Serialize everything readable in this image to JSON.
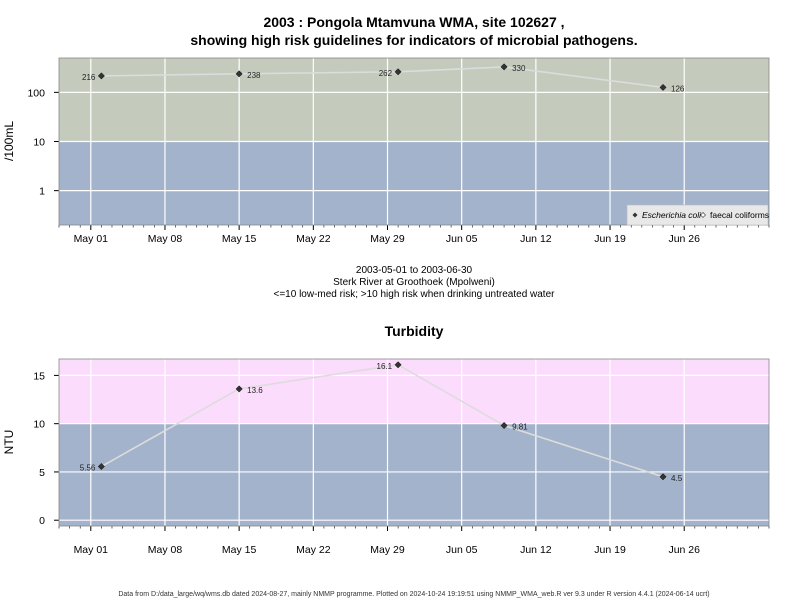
{
  "header": {
    "title_line1": "2003 : Pongola Mtamvuna WMA, site 102627 ,",
    "title_line2": "showing high risk guidelines for indicators of microbial pathogens."
  },
  "subtitles": [
    "2003-05-01 to 2003-06-30",
    "Sterk River at Groothoek (Mpolweni)",
    "<=10 low-med risk; >10 high risk when drinking untreated water"
  ],
  "footer": "Data from D:/data_large/wq/wms.db dated 2024-08-27, mainly NMMP programme. Plotted on 2024-10-24 19:19:51 using NMMP_WMA_web.R ver 9.3 under R version 4.4.1 (2024-06-14 ucrt)",
  "colors": {
    "high_risk_microbial": "#c4cbbd",
    "low_risk": "#a2b3cb",
    "high_risk_turbidity": "#fcdcfc",
    "line": "#dcdcdc",
    "marker": "#333333",
    "grid": "#ffffff"
  },
  "chart_data": [
    {
      "type": "line",
      "title": "",
      "ylabel": "/100mL",
      "xlabel": "",
      "y_scale": "log",
      "ylim": [
        0.2,
        500
      ],
      "x_range": [
        "2003-04-28",
        "2003-07-04"
      ],
      "threshold": 10,
      "x_tick_labels": [
        "May 01",
        "May 08",
        "May 15",
        "May 22",
        "May 29",
        "Jun 05",
        "Jun 12",
        "Jun 19",
        "Jun 26"
      ],
      "y_tick_labels": [
        "1",
        "10",
        "100"
      ],
      "grid": true,
      "legend": {
        "placement": "bottom-right",
        "entries": [
          "Escherichia coli",
          "faecal coliforms"
        ]
      },
      "series": [
        {
          "name": "Escherichia coli",
          "x": [
            "2003-05-02",
            "2003-05-15",
            "2003-05-30",
            "2003-06-09",
            "2003-06-24"
          ],
          "values": [
            216,
            238,
            262,
            330,
            126
          ],
          "labels": [
            "216",
            "238",
            "262",
            "330",
            "126"
          ]
        }
      ]
    },
    {
      "type": "line",
      "title": "Turbidity",
      "ylabel": "NTU",
      "xlabel": "",
      "ylim": [
        -0.6,
        16.7
      ],
      "x_range": [
        "2003-04-28",
        "2003-07-04"
      ],
      "threshold": 10,
      "x_tick_labels": [
        "May 01",
        "May 08",
        "May 15",
        "May 22",
        "May 29",
        "Jun 05",
        "Jun 12",
        "Jun 19",
        "Jun 26"
      ],
      "y_tick_labels": [
        "0",
        "5",
        "10",
        "15"
      ],
      "grid": true,
      "series": [
        {
          "x": [
            "2003-05-02",
            "2003-05-15",
            "2003-05-30",
            "2003-06-09",
            "2003-06-24"
          ],
          "values": [
            5.56,
            13.6,
            16.1,
            9.81,
            4.5
          ],
          "labels": [
            "5.56",
            "13.6",
            "16.1",
            "9.81",
            "4.5"
          ]
        }
      ]
    }
  ]
}
